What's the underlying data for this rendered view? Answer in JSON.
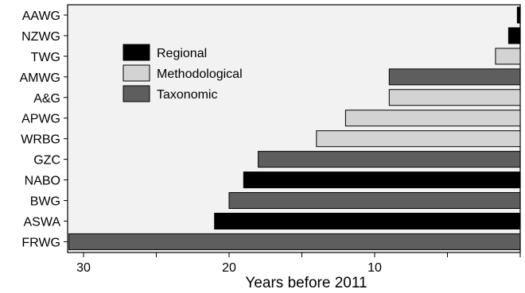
{
  "chart_data": {
    "type": "bar",
    "orientation": "horizontal",
    "title": "",
    "xlabel": "Years before 2011",
    "ylabel": "",
    "xlim": [
      0,
      32
    ],
    "x_reversed": true,
    "xticks": [
      30,
      20,
      10
    ],
    "grid": false,
    "legend_position": "top-left",
    "categories": [
      "AAWG",
      "NZWG",
      "TWG",
      "AMWG",
      "A&G",
      "APWG",
      "WRBG",
      "GZC",
      "NABO",
      "BWG",
      "ASWA",
      "FRWG"
    ],
    "values": [
      0.2,
      0.8,
      1.7,
      9,
      9,
      12,
      14,
      18,
      19,
      20,
      21,
      31
    ],
    "groups": [
      "Regional",
      "Regional",
      "Methodological",
      "Taxonomic",
      "Methodological",
      "Methodological",
      "Methodological",
      "Taxonomic",
      "Regional",
      "Taxonomic",
      "Regional",
      "Taxonomic"
    ],
    "legend": [
      {
        "name": "Regional",
        "color": "#000000"
      },
      {
        "name": "Methodological",
        "color": "#d3d3d3"
      },
      {
        "name": "Taxonomic",
        "color": "#5e5e5e"
      }
    ]
  }
}
